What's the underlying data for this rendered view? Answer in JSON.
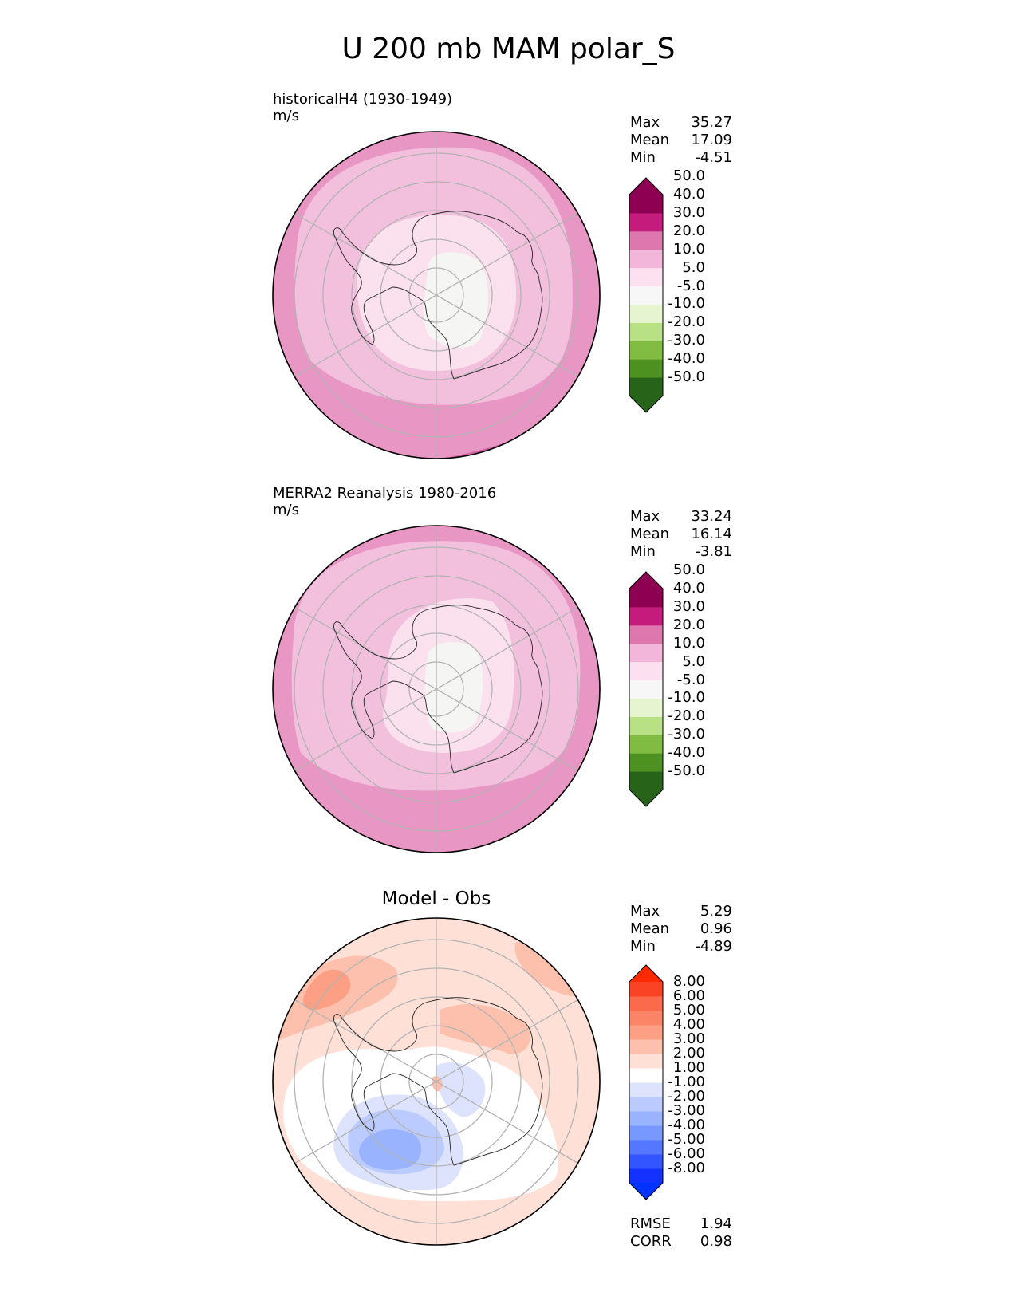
{
  "title": "U 200 mb MAM polar_S",
  "panels": [
    {
      "id": "test",
      "title_line1": "historicalH4 (1930-1949)",
      "title_line2": "m/s",
      "stats": {
        "max_label": "Max",
        "max": "35.27",
        "mean_label": "Mean",
        "mean": "17.09",
        "min_label": "Min",
        "min": "-4.51"
      },
      "colorbar": {
        "colors": [
          "#276419",
          "#4d9221",
          "#7fbc41",
          "#b8e186",
          "#e6f5d0",
          "#f7f7f7",
          "#fde0ef",
          "#f1b6da",
          "#de77ae",
          "#c51b7d",
          "#8e0152"
        ],
        "labels": [
          "-50.0",
          "-40.0",
          "-30.0",
          "-20.0",
          "-10.0",
          "-5.0",
          "5.0",
          "10.0",
          "20.0",
          "30.0",
          "40.0",
          "50.0"
        ],
        "under_color": "#276419",
        "over_color": "#8e0152"
      }
    },
    {
      "id": "ref",
      "title_line1": "MERRA2 Reanalysis 1980-2016",
      "title_line2": "m/s",
      "stats": {
        "max_label": "Max",
        "max": "33.24",
        "mean_label": "Mean",
        "mean": "16.14",
        "min_label": "Min",
        "min": "-3.81"
      },
      "colorbar": {
        "colors": [
          "#276419",
          "#4d9221",
          "#7fbc41",
          "#b8e186",
          "#e6f5d0",
          "#f7f7f7",
          "#fde0ef",
          "#f1b6da",
          "#de77ae",
          "#c51b7d",
          "#8e0152"
        ],
        "labels": [
          "-50.0",
          "-40.0",
          "-30.0",
          "-20.0",
          "-10.0",
          "-5.0",
          "5.0",
          "10.0",
          "20.0",
          "30.0",
          "40.0",
          "50.0"
        ],
        "under_color": "#276419",
        "over_color": "#8e0152"
      }
    },
    {
      "id": "diff",
      "title": "Model - Obs",
      "stats": {
        "max_label": "Max",
        "max": "5.29",
        "mean_label": "Mean",
        "mean": "0.96",
        "min_label": "Min",
        "min": "-4.89"
      },
      "colorbar": {
        "colors": [
          "#1432ff",
          "#3355ff",
          "#5577ff",
          "#7799ff",
          "#99b3ff",
          "#bbcbff",
          "#dde3fd",
          "#ffffff",
          "#fee0d6",
          "#fcc0ad",
          "#fc9f85",
          "#fc8466",
          "#fb6a4a",
          "#fa4325"
        ],
        "labels": [
          "-8.00",
          "-6.00",
          "-5.00",
          "-4.00",
          "-3.00",
          "-2.00",
          "-1.00",
          "1.00",
          "2.00",
          "3.00",
          "4.00",
          "5.00",
          "6.00",
          "8.00"
        ],
        "under_color": "#0033ff",
        "over_color": "#ff2a00"
      },
      "metrics": {
        "rmse_label": "RMSE",
        "rmse": "1.94",
        "corr_label": "CORR",
        "corr": "0.98"
      }
    }
  ]
}
